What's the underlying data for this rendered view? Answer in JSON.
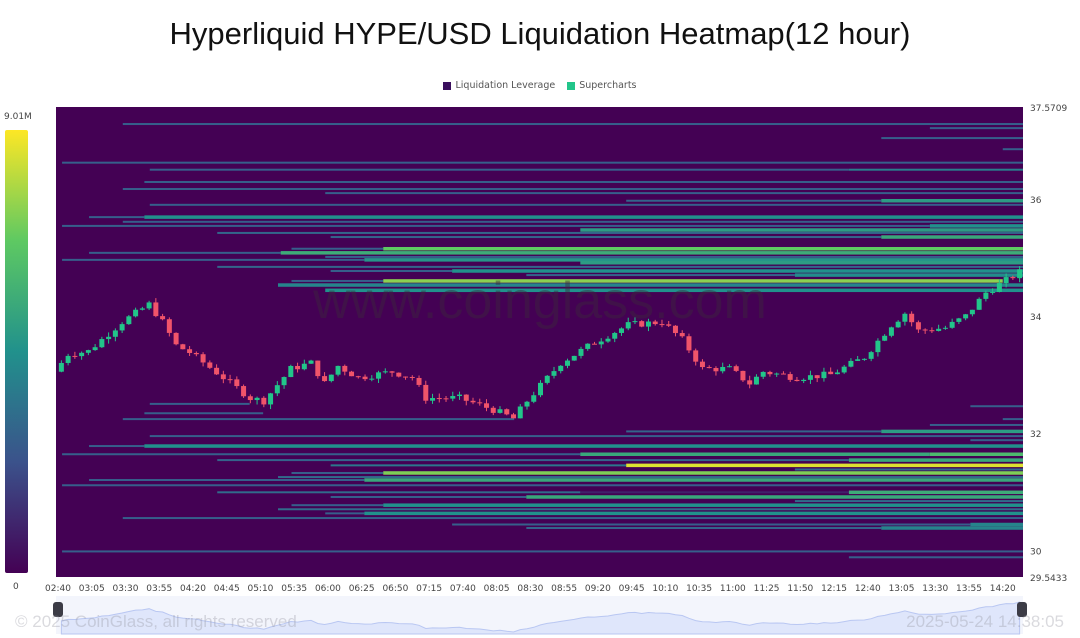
{
  "title": "Hyperliquid HYPE/USD Liquidation Heatmap(12 hour)",
  "legend": [
    {
      "label": "Liquidation Leverage",
      "color": "#3b0f5e"
    },
    {
      "label": "Supercharts",
      "color": "#22c58a"
    }
  ],
  "colorbar": {
    "max_label": "9.01M",
    "min_label": "0"
  },
  "watermark": "www.coinglass.com",
  "footer": {
    "copyright": "© 2025 CoinGlass, all rights reserved",
    "timestamp": "2025-05-24 14:38:05"
  },
  "chart_data": {
    "type": "heatmap",
    "title": "Hyperliquid HYPE/USD Liquidation Heatmap(12 hour)",
    "y_axis": {
      "position": "right",
      "range": [
        29.5433,
        37.5709
      ],
      "ticks": [
        "37.5709",
        "36",
        "34",
        "32",
        "30",
        "29.5433"
      ]
    },
    "x_axis": {
      "start": "02:40",
      "end": "14:35",
      "ticks": [
        "02:40",
        "03:05",
        "03:30",
        "03:55",
        "04:20",
        "04:45",
        "05:10",
        "05:35",
        "06:00",
        "06:25",
        "06:50",
        "07:15",
        "07:40",
        "08:05",
        "08:30",
        "08:55",
        "09:20",
        "09:45",
        "10:10",
        "10:35",
        "11:00",
        "11:25",
        "11:50",
        "12:15",
        "12:40",
        "13:05",
        "13:30",
        "13:55",
        "14:20"
      ]
    },
    "colors": {
      "background": "#440154",
      "up": "#22c58a",
      "down": "#f0546a",
      "scale": [
        "#440154",
        "#3b528b",
        "#21918c",
        "#5ec962",
        "#fde725"
      ]
    },
    "liquidation_levels": [
      [
        37.28,
        "03:28",
        "14:35",
        0.3
      ],
      [
        37.21,
        "13:26",
        "14:35",
        0.3
      ],
      [
        37.04,
        "12:50",
        "14:35",
        0.3
      ],
      [
        36.85,
        "14:20",
        "14:35",
        0.3
      ],
      [
        36.62,
        "02:43",
        "14:35",
        0.3
      ],
      [
        36.5,
        "03:48",
        "12:26",
        0.3
      ],
      [
        36.5,
        "12:26",
        "14:35",
        0.42
      ],
      [
        36.29,
        "03:44",
        "14:35",
        0.3
      ],
      [
        36.17,
        "03:28",
        "14:35",
        0.3
      ],
      [
        36.1,
        "05:58",
        "14:35",
        0.3
      ],
      [
        35.97,
        "09:41",
        "12:50",
        0.32
      ],
      [
        35.97,
        "12:50",
        "14:35",
        0.55
      ],
      [
        35.9,
        "03:48",
        "14:35",
        0.3
      ],
      [
        35.69,
        "03:03",
        "03:44",
        0.3
      ],
      [
        35.69,
        "03:44",
        "14:35",
        0.5
      ],
      [
        35.61,
        "03:28",
        "14:35",
        0.3
      ],
      [
        35.54,
        "02:43",
        "13:26",
        0.3
      ],
      [
        35.54,
        "13:26",
        "14:35",
        0.5
      ],
      [
        35.47,
        "09:07",
        "14:35",
        0.55
      ],
      [
        35.42,
        "04:38",
        "14:35",
        0.33
      ],
      [
        35.35,
        "06:02",
        "12:50",
        0.32
      ],
      [
        35.35,
        "12:50",
        "14:35",
        0.6
      ],
      [
        35.15,
        "05:33",
        "06:41",
        0.3
      ],
      [
        35.15,
        "06:41",
        "14:35",
        0.75
      ],
      [
        35.08,
        "03:03",
        "05:25",
        0.3
      ],
      [
        35.08,
        "05:25",
        "14:35",
        0.62
      ],
      [
        35.01,
        "05:58",
        "14:35",
        0.3
      ],
      [
        34.96,
        "02:43",
        "06:27",
        0.3
      ],
      [
        34.96,
        "06:27",
        "14:35",
        0.52
      ],
      [
        34.91,
        "09:07",
        "14:35",
        0.55
      ],
      [
        34.84,
        "04:38",
        "14:35",
        0.33
      ],
      [
        34.77,
        "06:02",
        "07:32",
        0.3
      ],
      [
        34.77,
        "07:32",
        "14:35",
        0.5
      ],
      [
        34.7,
        "08:27",
        "11:46",
        0.32
      ],
      [
        34.7,
        "11:46",
        "14:35",
        0.48
      ],
      [
        34.6,
        "05:33",
        "06:41",
        0.3
      ],
      [
        34.6,
        "06:41",
        "14:20",
        0.82
      ],
      [
        34.53,
        "05:23",
        "14:35",
        0.45
      ],
      [
        34.44,
        "05:58",
        "14:35",
        0.5
      ],
      [
        32.5,
        "03:48",
        "05:02",
        0.3
      ],
      [
        32.46,
        "13:56",
        "14:35",
        0.3
      ],
      [
        32.34,
        "03:44",
        "05:12",
        0.3
      ],
      [
        32.24,
        "03:28",
        "08:18",
        0.3
      ],
      [
        32.24,
        "14:20",
        "14:35",
        0.3
      ],
      [
        32.14,
        "13:26",
        "14:35",
        0.3
      ],
      [
        32.03,
        "09:41",
        "12:50",
        0.32
      ],
      [
        32.03,
        "12:50",
        "14:35",
        0.55
      ],
      [
        31.95,
        "03:48",
        "14:35",
        0.3
      ],
      [
        31.88,
        "13:56",
        "14:35",
        0.3
      ],
      [
        31.78,
        "03:03",
        "03:44",
        0.3
      ],
      [
        31.78,
        "03:44",
        "14:35",
        0.5
      ],
      [
        31.64,
        "02:43",
        "09:07",
        0.3
      ],
      [
        31.64,
        "09:07",
        "13:26",
        0.6
      ],
      [
        31.64,
        "13:26",
        "14:35",
        0.68
      ],
      [
        31.54,
        "04:38",
        "12:26",
        0.32
      ],
      [
        31.54,
        "12:26",
        "14:35",
        0.6
      ],
      [
        31.45,
        "06:02",
        "09:41",
        0.4
      ],
      [
        31.45,
        "09:41",
        "14:35",
        0.95
      ],
      [
        31.38,
        "11:46",
        "14:35",
        0.35
      ],
      [
        31.32,
        "05:33",
        "06:41",
        0.3
      ],
      [
        31.32,
        "06:41",
        "14:35",
        0.8
      ],
      [
        31.25,
        "05:23",
        "14:35",
        0.35
      ],
      [
        31.2,
        "03:03",
        "06:27",
        0.3
      ],
      [
        31.2,
        "06:27",
        "14:35",
        0.6
      ],
      [
        31.11,
        "02:43",
        "14:35",
        0.3
      ],
      [
        30.99,
        "04:38",
        "09:07",
        0.35
      ],
      [
        30.99,
        "09:07",
        "12:26",
        0.1
      ],
      [
        30.99,
        "12:26",
        "14:35",
        0.62
      ],
      [
        30.91,
        "06:02",
        "08:27",
        0.3
      ],
      [
        30.91,
        "08:27",
        "14:35",
        0.6
      ],
      [
        30.84,
        "11:46",
        "14:35",
        0.35
      ],
      [
        30.77,
        "05:33",
        "06:41",
        0.3
      ],
      [
        30.77,
        "06:41",
        "14:35",
        0.5
      ],
      [
        30.7,
        "05:23",
        "14:35",
        0.35
      ],
      [
        30.63,
        "05:58",
        "06:27",
        0.3
      ],
      [
        30.63,
        "06:27",
        "14:35",
        0.5
      ],
      [
        30.55,
        "03:28",
        "14:35",
        0.3
      ],
      [
        30.44,
        "07:32",
        "13:56",
        0.3
      ],
      [
        30.44,
        "13:56",
        "14:35",
        0.45
      ],
      [
        30.38,
        "08:27",
        "12:50",
        0.32
      ],
      [
        30.38,
        "12:50",
        "14:35",
        0.45
      ],
      [
        29.98,
        "02:43",
        "14:35",
        0.3
      ],
      [
        29.88,
        "12:26",
        "14:35",
        0.3
      ]
    ],
    "price": [
      [
        "02:40",
        33.05
      ],
      [
        "02:50",
        33.35
      ],
      [
        "03:05",
        33.4
      ],
      [
        "03:30",
        33.9
      ],
      [
        "03:50",
        34.2
      ],
      [
        "04:00",
        33.9
      ],
      [
        "04:10",
        33.5
      ],
      [
        "04:20",
        33.38
      ],
      [
        "04:45",
        32.95
      ],
      [
        "05:05",
        32.6
      ],
      [
        "05:15",
        32.55
      ],
      [
        "05:35",
        33.1
      ],
      [
        "05:50",
        33.2
      ],
      [
        "06:00",
        32.85
      ],
      [
        "06:10",
        33.15
      ],
      [
        "06:25",
        32.95
      ],
      [
        "06:50",
        33.05
      ],
      [
        "07:05",
        32.95
      ],
      [
        "07:15",
        32.6
      ],
      [
        "07:40",
        32.6
      ],
      [
        "08:05",
        32.4
      ],
      [
        "08:20",
        32.25
      ],
      [
        "08:30",
        32.55
      ],
      [
        "08:55",
        33.2
      ],
      [
        "09:20",
        33.55
      ],
      [
        "09:45",
        33.85
      ],
      [
        "10:10",
        33.9
      ],
      [
        "10:25",
        33.6
      ],
      [
        "10:40",
        33.1
      ],
      [
        "11:00",
        33.1
      ],
      [
        "11:15",
        32.85
      ],
      [
        "11:25",
        33.05
      ],
      [
        "11:50",
        32.95
      ],
      [
        "12:15",
        33.0
      ],
      [
        "12:40",
        33.3
      ],
      [
        "13:00",
        33.85
      ],
      [
        "13:10",
        34.05
      ],
      [
        "13:20",
        33.75
      ],
      [
        "13:40",
        33.8
      ],
      [
        "13:55",
        34.0
      ],
      [
        "14:10",
        34.4
      ],
      [
        "14:35",
        34.75
      ]
    ]
  }
}
